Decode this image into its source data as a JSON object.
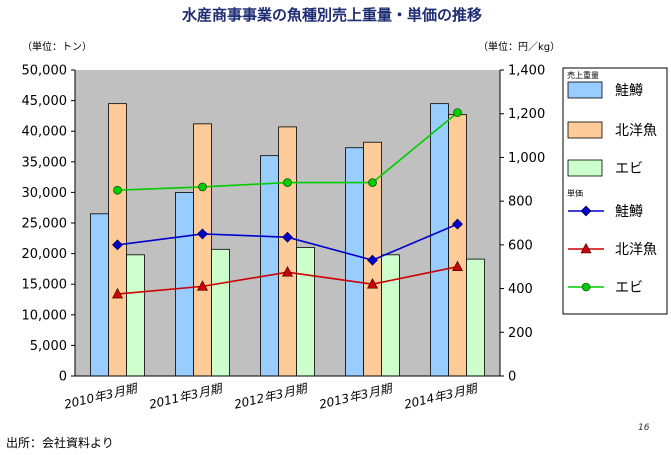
{
  "chart_data": {
    "type": "bar",
    "title": "水産商事事業の魚種別売上重量・単価の推移",
    "y_left_unit": "（単位：トン）",
    "y_right_unit": "（単位：円／kg）",
    "categories": [
      "2010年3月期",
      "2011年3月期",
      "2012年3月期",
      "2013年3月期",
      "2014年3月期"
    ],
    "y_left": {
      "min": 0,
      "max": 50000,
      "step": 5000
    },
    "y_right": {
      "min": 0,
      "max": 1400,
      "step": 200
    },
    "legend_groups": {
      "bars": "売上重量",
      "lines": "単価"
    },
    "bar_series": [
      {
        "name": "鮭鱒",
        "values": [
          26500,
          30000,
          36000,
          37300,
          44500
        ],
        "color": "#99ccff"
      },
      {
        "name": "北洋魚",
        "values": [
          44500,
          41200,
          40700,
          38200,
          42700
        ],
        "color": "#ffcc99"
      },
      {
        "name": "エビ",
        "values": [
          19800,
          20700,
          21000,
          19800,
          19100
        ],
        "color": "#ccffcc"
      }
    ],
    "line_series": [
      {
        "name": "鮭鱒",
        "values": [
          600,
          650,
          635,
          530,
          695
        ],
        "color": "#0000cc",
        "marker": "diamond"
      },
      {
        "name": "北洋魚",
        "values": [
          375,
          410,
          475,
          420,
          500
        ],
        "color": "#cc0000",
        "marker": "triangle"
      },
      {
        "name": "エビ",
        "values": [
          850,
          865,
          885,
          885,
          1205
        ],
        "color": "#00cc00",
        "marker": "circle"
      }
    ],
    "grid": false,
    "plot_background": "#c0c0c0",
    "legend_position": "right"
  },
  "footer": {
    "source": "出所：会社資料より",
    "page_number": "16"
  }
}
